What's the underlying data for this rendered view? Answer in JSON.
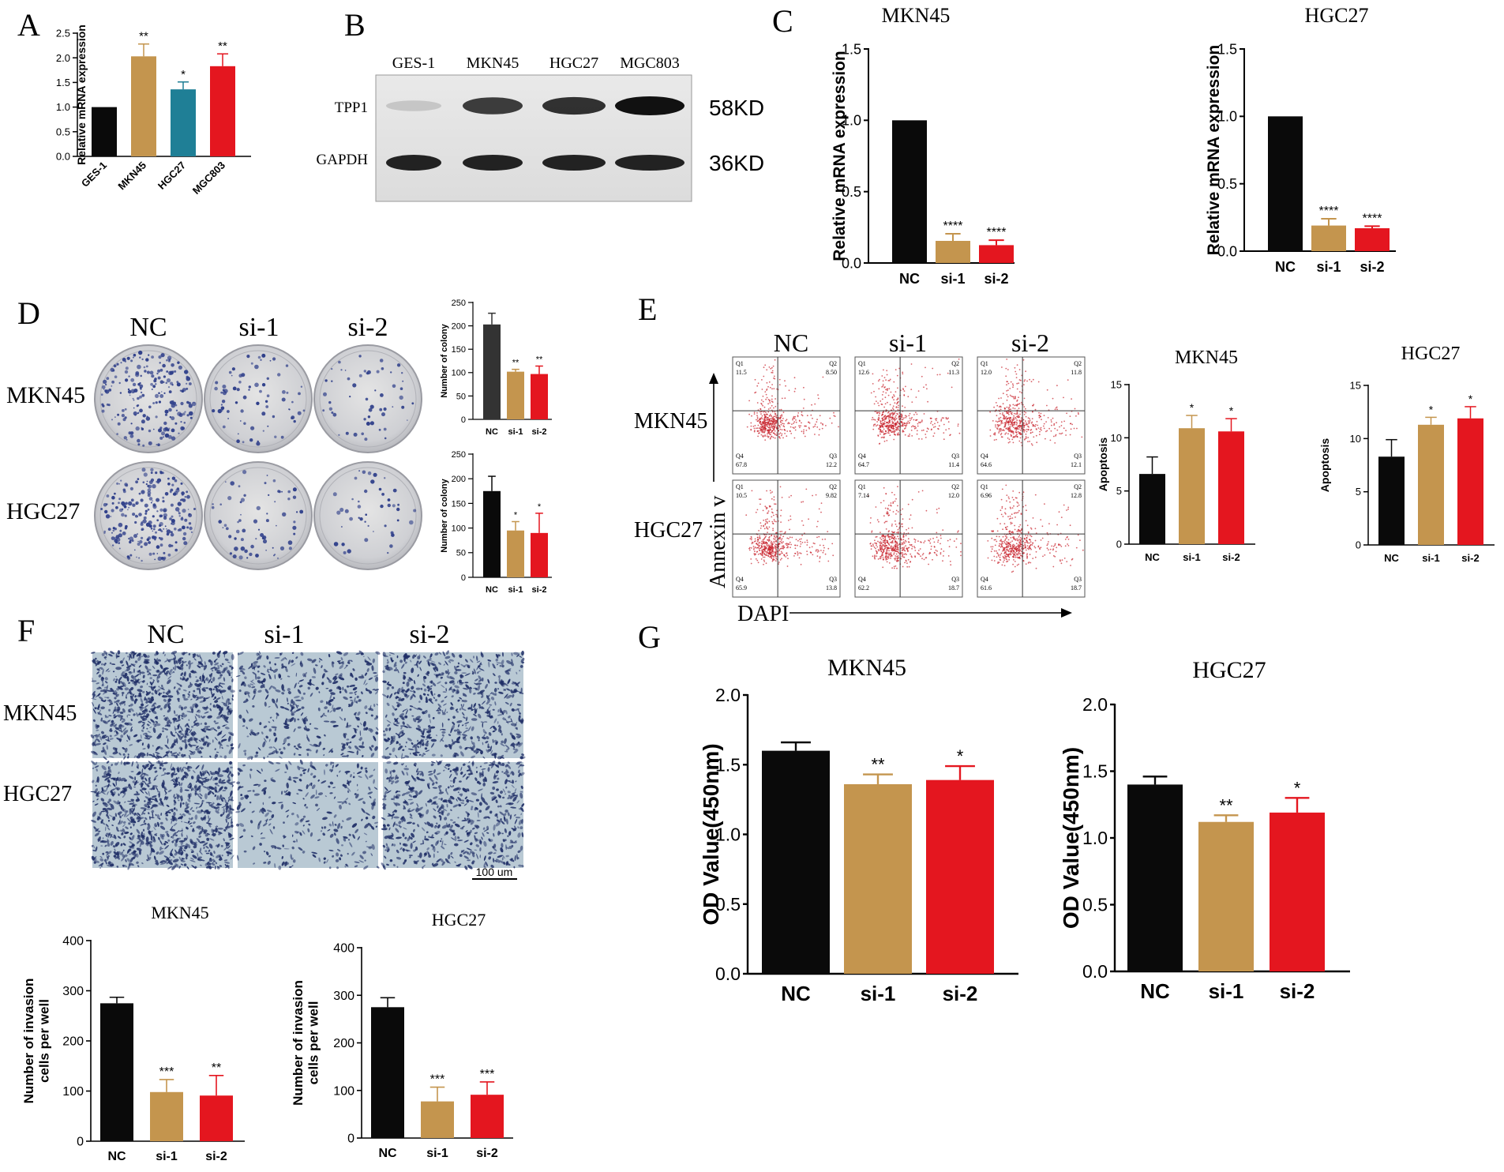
{
  "panels": {
    "A": {
      "letter": "A"
    },
    "B": {
      "letter": "B",
      "lanes": [
        "GES-1",
        "MKN45",
        "HGC27",
        "MGC803"
      ],
      "bands": [
        {
          "name": "TPP1",
          "kd": "58KD"
        },
        {
          "name": "GAPDH",
          "kd": "36KD"
        }
      ]
    },
    "C": {
      "letter": "C"
    },
    "D": {
      "letter": "D",
      "cols": [
        "NC",
        "si-1",
        "si-2"
      ],
      "rows": [
        "MKN45",
        "HGC27"
      ]
    },
    "E": {
      "letter": "E",
      "cols": [
        "NC",
        "si-1",
        "si-2"
      ],
      "rows": [
        "MKN45",
        "HGC27"
      ],
      "ylab": "Annexin v",
      "xlab": "DAPI",
      "quadrants": [
        {
          "q1": "11.5",
          "q2": "8.50",
          "q3": "12.2",
          "q4": "67.8"
        },
        {
          "q1": "12.6",
          "q2": "11.3",
          "q3": "11.4",
          "q4": "64.7"
        },
        {
          "q1": "12.0",
          "q2": "11.8",
          "q3": "12.1",
          "q4": "64.6"
        },
        {
          "q1": "10.5",
          "q2": "9.82",
          "q3": "13.8",
          "q4": "65.9"
        },
        {
          "q1": "7.14",
          "q2": "12.0",
          "q3": "18.7",
          "q4": "62.2"
        },
        {
          "q1": "6.96",
          "q2": "12.8",
          "q3": "18.7",
          "q4": "61.6"
        }
      ],
      "quadrant_labels": [
        "Q1",
        "Q2",
        "Q3",
        "Q4"
      ]
    },
    "F": {
      "letter": "F",
      "cols": [
        "NC",
        "si-1",
        "si-2"
      ],
      "rows": [
        "MKN45",
        "HGC27"
      ],
      "scale": "100 um"
    },
    "G": {
      "letter": "G"
    }
  },
  "colors": {
    "black": "#0a0a0a",
    "tan": "#c4954e",
    "teal": "#1f7f96",
    "red": "#e4161f",
    "darkgray": "#333333",
    "stain": "#2f3f8a"
  },
  "chart_data": [
    {
      "id": "A",
      "type": "bar",
      "title": "",
      "ylabel": "Relative mRNA expression",
      "categories": [
        "GES-1",
        "MKN45",
        "HGC27",
        "MGC803"
      ],
      "values": [
        1.0,
        2.03,
        1.36,
        1.83
      ],
      "errors": [
        0,
        0.25,
        0.15,
        0.25
      ],
      "sig": [
        "",
        "**",
        "*",
        "**"
      ],
      "ylim": [
        0,
        2.5
      ],
      "ticks": [
        "0.0",
        "0.5",
        "1.0",
        "1.5",
        "2.0",
        "2.5"
      ],
      "colors": [
        "#0a0a0a",
        "#c4954e",
        "#1f7f96",
        "#e4161f"
      ]
    },
    {
      "id": "C1",
      "type": "bar",
      "title": "MKN45",
      "ylabel": "Relative mRNA expression",
      "categories": [
        "NC",
        "si-1",
        "si-2"
      ],
      "values": [
        1.0,
        0.155,
        0.125
      ],
      "errors": [
        0,
        0.05,
        0.035
      ],
      "sig": [
        "",
        "****",
        "****"
      ],
      "ylim": [
        0,
        1.5
      ],
      "ticks": [
        "0.0",
        "0.5",
        "1.0",
        "1.5"
      ]
    },
    {
      "id": "C2",
      "type": "bar",
      "title": "HGC27",
      "ylabel": "Relative mRNA expression",
      "categories": [
        "NC",
        "si-1",
        "si-2"
      ],
      "values": [
        1.0,
        0.19,
        0.17
      ],
      "errors": [
        0,
        0.05,
        0.015
      ],
      "sig": [
        "",
        "****",
        "****"
      ],
      "ylim": [
        0,
        1.5
      ],
      "ticks": [
        "0.0",
        "0.5",
        "1.0",
        "1.5"
      ]
    },
    {
      "id": "D1",
      "type": "bar",
      "title": "",
      "ylabel": "Number of colony",
      "categories": [
        "NC",
        "si-1",
        "si-2"
      ],
      "values": [
        203,
        102,
        97
      ],
      "errors": [
        24,
        5,
        17
      ],
      "sig": [
        "",
        "**",
        "**"
      ],
      "ylim": [
        0,
        250
      ],
      "ticks": [
        "0",
        "50",
        "100",
        "150",
        "200",
        "250"
      ],
      "colors": [
        "#333333",
        "#c4954e",
        "#e4161f"
      ]
    },
    {
      "id": "D2",
      "type": "bar",
      "title": "",
      "ylabel": "Number of colony",
      "categories": [
        "NC",
        "si-1",
        "si-2"
      ],
      "values": [
        175,
        95,
        90
      ],
      "errors": [
        30,
        18,
        40
      ],
      "sig": [
        "",
        "*",
        "*"
      ],
      "ylim": [
        0,
        250
      ],
      "ticks": [
        "0",
        "50",
        "100",
        "150",
        "200",
        "250"
      ]
    },
    {
      "id": "E1",
      "type": "bar",
      "title": "MKN45",
      "ylabel": "Apoptosis",
      "categories": [
        "NC",
        "si-1",
        "si-2"
      ],
      "values": [
        6.6,
        10.9,
        10.6
      ],
      "errors": [
        1.6,
        1.2,
        1.2
      ],
      "sig": [
        "",
        "*",
        "*"
      ],
      "ylim": [
        0,
        15
      ],
      "ticks": [
        "0",
        "5",
        "10",
        "15"
      ]
    },
    {
      "id": "E2",
      "type": "bar",
      "title": "HGC27",
      "ylabel": "Apoptosis",
      "categories": [
        "NC",
        "si-1",
        "si-2"
      ],
      "values": [
        8.3,
        11.3,
        11.9
      ],
      "errors": [
        1.6,
        0.7,
        1.1
      ],
      "sig": [
        "",
        "*",
        "*"
      ],
      "ylim": [
        0,
        15
      ],
      "ticks": [
        "0",
        "5",
        "10",
        "15"
      ]
    },
    {
      "id": "F1",
      "type": "bar",
      "title": "MKN45",
      "ylabel": "Number of invasion cells per well",
      "categories": [
        "NC",
        "si-1",
        "si-2"
      ],
      "values": [
        275,
        98,
        91
      ],
      "errors": [
        12,
        25,
        40
      ],
      "sig": [
        "",
        "***",
        "**"
      ],
      "ylim": [
        0,
        400
      ],
      "ticks": [
        "0",
        "100",
        "200",
        "300",
        "400"
      ]
    },
    {
      "id": "F2",
      "type": "bar",
      "title": "HGC27",
      "ylabel": "Number of invasion cells per well",
      "categories": [
        "NC",
        "si-1",
        "si-2"
      ],
      "values": [
        275,
        77,
        91
      ],
      "errors": [
        20,
        30,
        27
      ],
      "sig": [
        "",
        "***",
        "***"
      ],
      "ylim": [
        0,
        400
      ],
      "ticks": [
        "0",
        "100",
        "200",
        "300",
        "400"
      ]
    },
    {
      "id": "G1",
      "type": "bar",
      "title": "MKN45",
      "ylabel": "OD Value(450nm)",
      "categories": [
        "NC",
        "si-1",
        "si-2"
      ],
      "values": [
        1.6,
        1.36,
        1.39
      ],
      "errors": [
        0.06,
        0.07,
        0.1
      ],
      "sig": [
        "",
        "**",
        "*"
      ],
      "ylim": [
        0,
        2.0
      ],
      "ticks": [
        "0.0",
        "0.5",
        "1.0",
        "1.5",
        "2.0"
      ]
    },
    {
      "id": "G2",
      "type": "bar",
      "title": "HGC27",
      "ylabel": "OD Value(450nm)",
      "categories": [
        "NC",
        "si-1",
        "si-2"
      ],
      "values": [
        1.4,
        1.12,
        1.19
      ],
      "errors": [
        0.06,
        0.05,
        0.11
      ],
      "sig": [
        "",
        "**",
        "*"
      ],
      "ylim": [
        0,
        2.0
      ],
      "ticks": [
        "0.0",
        "0.5",
        "1.0",
        "1.5",
        "2.0"
      ]
    }
  ]
}
